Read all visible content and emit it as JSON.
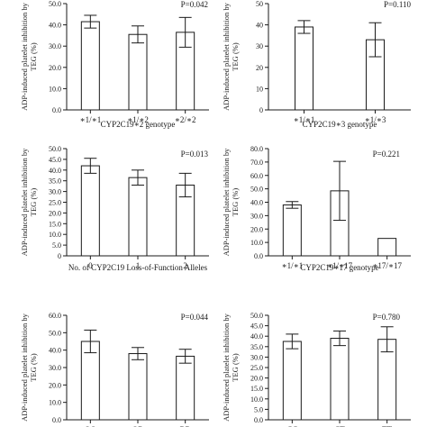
{
  "chart_data": [
    {
      "type": "bar",
      "ylabel": "ADP-induced platelet inhibition by TEG (%)",
      "xlabel": "CYP2C19∗2 genotype",
      "pvalue": "P=0.042",
      "categories": [
        "∗1/∗1",
        "∗1/∗2",
        "∗2/∗2"
      ],
      "values": [
        41.5,
        35.5,
        36.5
      ],
      "errors": [
        3.0,
        4.0,
        7.0
      ],
      "ylim": [
        0,
        50
      ],
      "ticks": [
        0,
        10,
        20,
        30,
        40,
        50
      ],
      "tick_labels": [
        "0.0",
        "10.0",
        "20.0",
        "30.0",
        "40.0",
        "50.0"
      ]
    },
    {
      "type": "bar",
      "ylabel": "ADP-induced platelet inhibition by TEG (%)",
      "xlabel": "CYP2C19∗3 genotype",
      "pvalue": "P=0.110",
      "categories": [
        "∗1/∗1",
        "∗1/∗3"
      ],
      "values": [
        39.0,
        33.0
      ],
      "errors": [
        3.0,
        8.0
      ],
      "ylim": [
        0,
        50
      ],
      "ticks": [
        0,
        10,
        20,
        30,
        40,
        50
      ],
      "tick_labels": [
        "0",
        "10",
        "20",
        "30",
        "40",
        "50"
      ]
    },
    {
      "type": "bar",
      "ylabel": "ADP-induced platelet inhibition by TEG (%)",
      "xlabel": "No. of CYP2C19 Loss-of-Function Alleles",
      "pvalue": "P=0.013",
      "categories": [
        "0",
        "1",
        "2"
      ],
      "values": [
        42.0,
        36.5,
        33.0
      ],
      "errors": [
        3.5,
        3.5,
        5.5
      ],
      "ylim": [
        0,
        50
      ],
      "ticks": [
        0,
        5,
        10,
        15,
        20,
        25,
        30,
        35,
        40,
        45,
        50
      ],
      "tick_labels": [
        "0",
        "5.0",
        "10.0",
        "15.0",
        "20.0",
        "25.0",
        "30.0",
        "35.0",
        "40.0",
        "45.0",
        "50.0"
      ]
    },
    {
      "type": "bar",
      "ylabel": "ADP-induced platelet inhibition by TEG (%)",
      "xlabel": "CYP2C19∗17 genotype",
      "pvalue": "P=0.221",
      "categories": [
        "∗1/∗1",
        "∗1/∗17",
        "∗17/∗17"
      ],
      "values": [
        38.0,
        48.5,
        13.0
      ],
      "errors": [
        2.5,
        22.0,
        0
      ],
      "ylim": [
        0,
        80
      ],
      "ticks": [
        0,
        10,
        20,
        30,
        40,
        50,
        60,
        70,
        80
      ],
      "tick_labels": [
        "0.0",
        "10.0",
        "20.0",
        "30.0",
        "40.0",
        "50.0",
        "60.0",
        "70.0",
        "80.0"
      ]
    },
    {
      "type": "bar",
      "ylabel": "ADP-induced platelet inhibition by TEG (%)",
      "xlabel": "",
      "pvalue": "P=0.044",
      "categories": [
        "QQ",
        "QR",
        "RR"
      ],
      "values": [
        45.0,
        38.0,
        36.5
      ],
      "errors": [
        6.5,
        3.5,
        4.0
      ],
      "ylim": [
        0,
        60
      ],
      "ticks": [
        0,
        10,
        20,
        30,
        40,
        50,
        60
      ],
      "tick_labels": [
        "0.0",
        "10.0",
        "20.0",
        "30.0",
        "40.0",
        "50.0",
        "60.0"
      ]
    },
    {
      "type": "bar",
      "ylabel": "ADP-induced platelet inhibition by TEG (%)",
      "xlabel": "",
      "pvalue": "P=0.780",
      "categories": [
        "CC",
        "CT",
        "TT"
      ],
      "values": [
        37.5,
        39.0,
        38.5
      ],
      "errors": [
        3.5,
        3.5,
        6.0
      ],
      "ylim": [
        0,
        50
      ],
      "ticks": [
        0,
        5,
        10,
        15,
        20,
        25,
        30,
        35,
        40,
        45,
        50
      ],
      "tick_labels": [
        "0.0",
        "5.0",
        "10.0",
        "15.0",
        "20.0",
        "25.0",
        "30.0",
        "35.0",
        "40.0",
        "45.0",
        "50.0"
      ]
    }
  ]
}
